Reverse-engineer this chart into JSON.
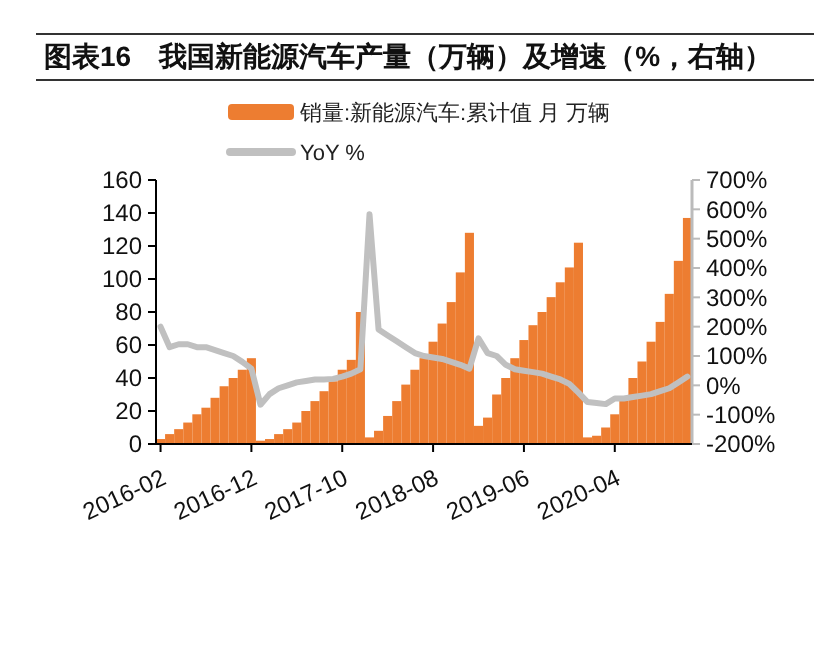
{
  "chart_data": {
    "type": "bar",
    "title": "图表16　我国新能源汽车产量（万辆）及增速（%，右轴）",
    "categories": [
      "2016-02",
      null,
      null,
      null,
      null,
      null,
      null,
      null,
      null,
      null,
      "2016-12",
      null,
      null,
      null,
      null,
      null,
      null,
      null,
      null,
      null,
      "2017-10",
      null,
      null,
      null,
      null,
      null,
      null,
      null,
      null,
      null,
      "2018-08",
      null,
      null,
      null,
      null,
      null,
      null,
      null,
      null,
      null,
      "2019-06",
      null,
      null,
      null,
      null,
      null,
      null,
      null,
      null,
      null,
      "2020-04",
      null,
      null,
      null,
      null,
      null,
      null,
      null,
      null
    ],
    "series": [
      {
        "name": "销量:新能源汽车:累计值 月 万辆",
        "color": "#ed7d31",
        "values": [
          3,
          6,
          9,
          13,
          18,
          22,
          28,
          35,
          40,
          45,
          52,
          2,
          3,
          6,
          9,
          13,
          20,
          26,
          32,
          38,
          45,
          51,
          80,
          4,
          8,
          17,
          26,
          36,
          45,
          52,
          62,
          73,
          86,
          104,
          128,
          11,
          16,
          30,
          40,
          52,
          63,
          72,
          80,
          89,
          98,
          107,
          122,
          4,
          5,
          10,
          18,
          27,
          40,
          50,
          62,
          74,
          91,
          111,
          137
        ]
      },
      {
        "name": "YoY %",
        "type": "line",
        "axis": "y2",
        "color": "#c0c0c0",
        "values": [
          200,
          130,
          140,
          140,
          130,
          130,
          120,
          110,
          100,
          80,
          57,
          -66,
          -30,
          -10,
          0,
          10,
          15,
          20,
          20,
          22,
          30,
          40,
          55,
          583,
          190,
          170,
          150,
          130,
          110,
          100,
          95,
          90,
          80,
          70,
          57,
          160,
          110,
          100,
          70,
          55,
          50,
          45,
          40,
          30,
          20,
          5,
          -25,
          -57,
          -60,
          -64,
          -45,
          -45,
          -40,
          -35,
          -30,
          -20,
          -10,
          10,
          30
        ]
      }
    ],
    "ylim": [
      0,
      160
    ],
    "yticks": [
      0,
      20,
      40,
      60,
      80,
      100,
      120,
      140,
      160
    ],
    "y2lim": [
      -200,
      700
    ],
    "y2ticks": [
      {
        "value": -200,
        "label": "-200%"
      },
      {
        "value": -100,
        "label": "-100%"
      },
      {
        "value": 0,
        "label": "0%"
      },
      {
        "value": 100,
        "label": "100%"
      },
      {
        "value": 200,
        "label": "200%"
      },
      {
        "value": 300,
        "label": "300%"
      },
      {
        "value": 400,
        "label": "400%"
      },
      {
        "value": 500,
        "label": "500%"
      },
      {
        "value": 600,
        "label": "600%"
      },
      {
        "value": 700,
        "label": "700%"
      }
    ],
    "legend": "top",
    "grid": false
  }
}
